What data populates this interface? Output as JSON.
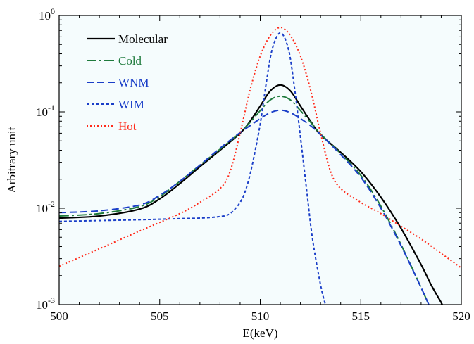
{
  "chart_data": {
    "type": "line",
    "xlabel": "E(keV)",
    "ylabel": "Arbitrary unit",
    "xlim": [
      500,
      520
    ],
    "ylim": [
      0.001,
      1
    ],
    "yscale": "log",
    "background": "#f5fcfd",
    "legend_position": "top-left",
    "x_ticks": [
      500,
      505,
      510,
      515,
      520
    ],
    "y_ticks": [
      {
        "value": 0.001,
        "base": "10",
        "exp": "-3"
      },
      {
        "value": 0.01,
        "base": "10",
        "exp": "-2"
      },
      {
        "value": 0.1,
        "base": "10",
        "exp": "-1"
      },
      {
        "value": 1,
        "base": "10",
        "exp": "0"
      }
    ],
    "series": [
      {
        "name": "Molecular",
        "color": "#000000",
        "dash": "solid",
        "x": [
          500,
          502,
          504,
          505,
          506,
          507,
          508,
          509,
          509.5,
          510,
          510.5,
          511,
          511.5,
          512,
          512.5,
          513,
          514,
          515,
          516,
          517,
          518,
          518.5,
          519,
          519.1
        ],
        "y": [
          0.0079,
          0.0083,
          0.0098,
          0.0125,
          0.018,
          0.027,
          0.04,
          0.06,
          0.08,
          0.115,
          0.165,
          0.19,
          0.165,
          0.115,
          0.08,
          0.058,
          0.038,
          0.024,
          0.013,
          0.0062,
          0.0026,
          0.0016,
          0.00105,
          0.00095
        ]
      },
      {
        "name": "Cold",
        "color": "#1e7a3c",
        "dash": "longdashdot",
        "x": [
          500,
          502,
          504,
          505,
          506,
          507,
          508,
          509,
          509.5,
          510,
          510.5,
          511,
          511.5,
          512,
          512.5,
          513,
          514,
          515,
          516,
          517,
          518,
          518.4
        ],
        "y": [
          0.0083,
          0.0088,
          0.0104,
          0.0132,
          0.019,
          0.028,
          0.041,
          0.061,
          0.078,
          0.103,
          0.133,
          0.145,
          0.133,
          0.103,
          0.078,
          0.059,
          0.037,
          0.022,
          0.0105,
          0.0042,
          0.0015,
          0.00098
        ]
      },
      {
        "name": "WNM",
        "color": "#1a3ec8",
        "dash": "longdash",
        "x": [
          500,
          502,
          504,
          505,
          506,
          507,
          508,
          509,
          509.5,
          510,
          510.5,
          511,
          511.5,
          512,
          512.5,
          513,
          514,
          515,
          516,
          517,
          518,
          518.4
        ],
        "y": [
          0.009,
          0.0094,
          0.0108,
          0.0136,
          0.019,
          0.028,
          0.042,
          0.061,
          0.072,
          0.085,
          0.098,
          0.104,
          0.098,
          0.085,
          0.072,
          0.058,
          0.036,
          0.021,
          0.01,
          0.0041,
          0.0015,
          0.00098
        ]
      },
      {
        "name": "WIM",
        "color": "#1a3ec8",
        "dash": "shortdash",
        "x": [
          500,
          504,
          506,
          507,
          508,
          508.5,
          509,
          509.3,
          509.6,
          510,
          510.3,
          510.6,
          511,
          511.4,
          511.7,
          512,
          512.3,
          512.6,
          513,
          513.25
        ],
        "y": [
          0.0073,
          0.0076,
          0.0078,
          0.0079,
          0.0082,
          0.0088,
          0.0115,
          0.016,
          0.028,
          0.075,
          0.2,
          0.45,
          0.66,
          0.45,
          0.18,
          0.055,
          0.016,
          0.0048,
          0.0016,
          0.00098
        ]
      },
      {
        "name": "Hot",
        "color": "#ff2a1a",
        "dash": "dotted",
        "x": [
          500,
          502,
          504,
          506,
          507,
          508,
          508.5,
          509,
          509.5,
          510,
          510.5,
          511,
          511.5,
          512,
          512.5,
          513,
          513.5,
          514,
          515,
          516,
          517,
          518,
          519,
          520
        ],
        "y": [
          0.0025,
          0.0038,
          0.0058,
          0.0088,
          0.0115,
          0.016,
          0.024,
          0.06,
          0.17,
          0.38,
          0.62,
          0.75,
          0.62,
          0.38,
          0.17,
          0.06,
          0.024,
          0.016,
          0.0115,
          0.0088,
          0.0065,
          0.0048,
          0.0034,
          0.0024
        ]
      }
    ]
  }
}
